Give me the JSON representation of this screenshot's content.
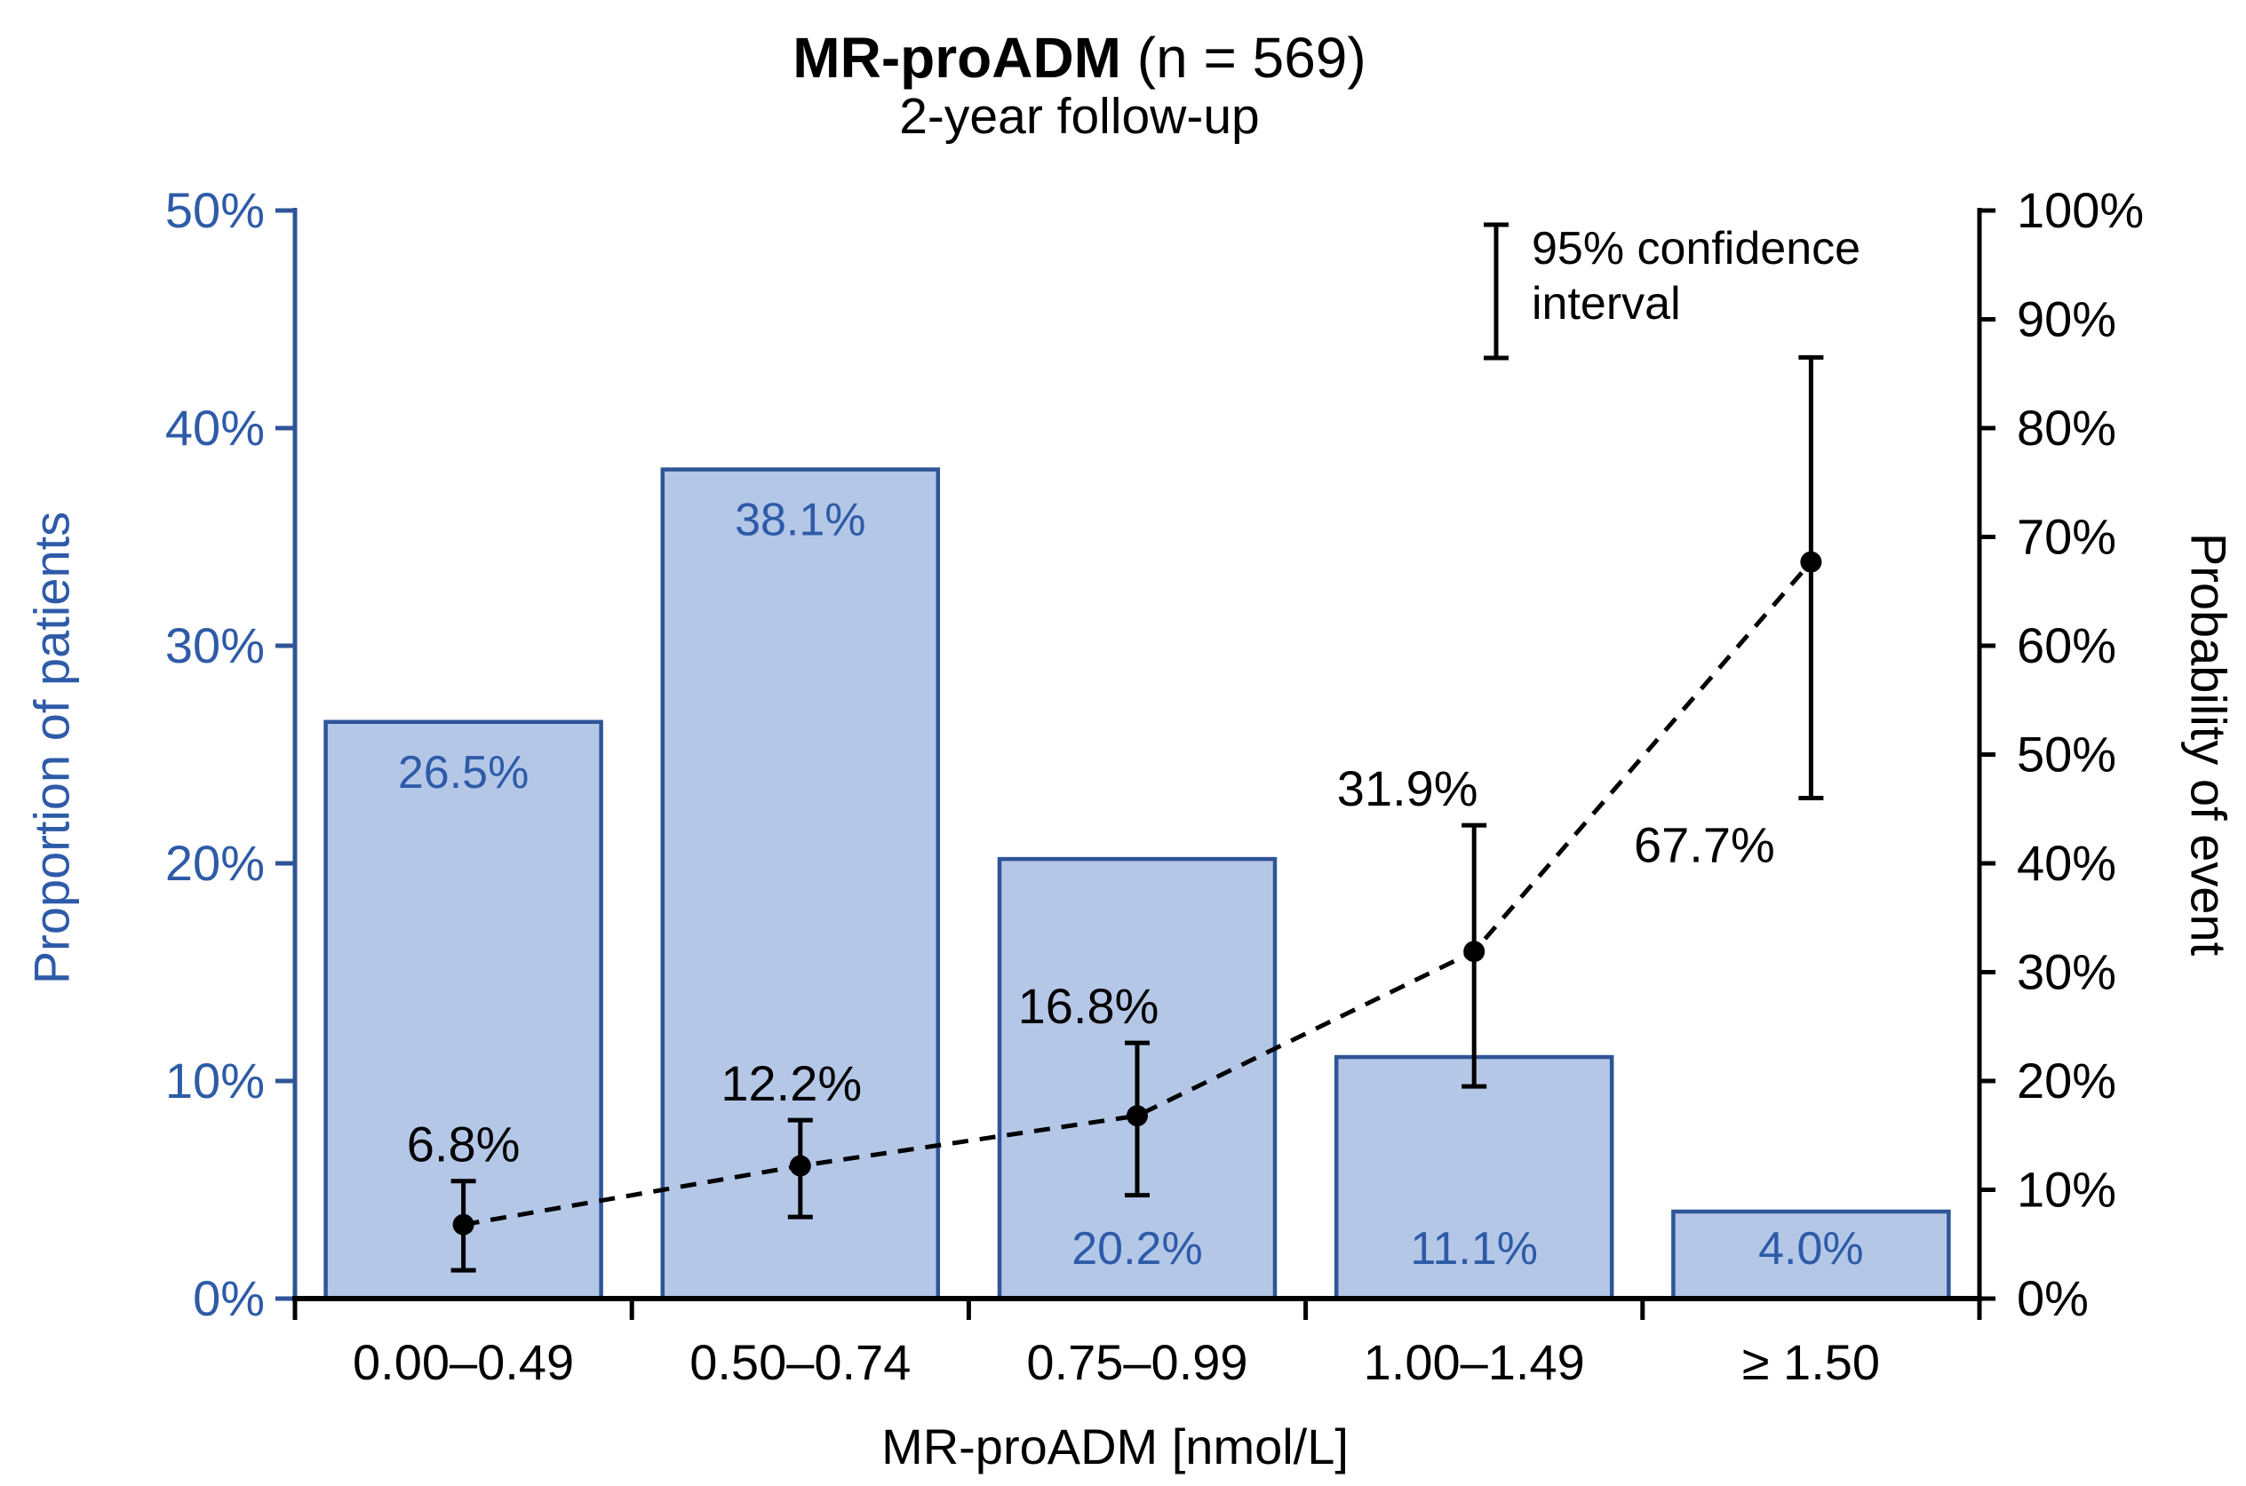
{
  "title": {
    "main": "MR-proADM",
    "suffix": " (n = 569)",
    "subtitle": "2-year follow-up"
  },
  "legend": {
    "marker": "error-bar-icon",
    "lines": [
      "95% confidence",
      "interval"
    ]
  },
  "colors": {
    "bar_fill": "#B4C7E7",
    "bar_border": "#2E5597",
    "blue_text": "#2E5BA8",
    "blue_axis": "#2E5597",
    "black": "#000000"
  },
  "chart_data": {
    "type": "bar",
    "subtype": "bar+line-dual-axis",
    "categories": [
      "0.00–0.49",
      "0.50–0.74",
      "0.75–0.99",
      "1.00–1.49",
      "≥ 1.50"
    ],
    "xlabel": "MR-proADM [nmol/L]",
    "grid": "off",
    "left_axis": {
      "label": "Proportion of patients",
      "min": 0,
      "max": 50,
      "ticks": [
        "0%",
        "10%",
        "20%",
        "30%",
        "40%",
        "50%"
      ]
    },
    "right_axis": {
      "label": "Probability of event",
      "min": 0,
      "max": 100,
      "ticks": [
        "0%",
        "10%",
        "20%",
        "30%",
        "40%",
        "50%",
        "60%",
        "70%",
        "80%",
        "90%",
        "100%"
      ]
    },
    "series": [
      {
        "name": "Proportion of patients",
        "type": "bar",
        "axis": "left",
        "values": [
          26.5,
          38.1,
          20.2,
          11.1,
          4.0
        ],
        "labels": [
          "26.5%",
          "38.1%",
          "20.2%",
          "11.1%",
          "4.0%"
        ],
        "label_position": [
          "top",
          "top",
          "bottom",
          "bottom",
          "bottom"
        ]
      },
      {
        "name": "Probability of event",
        "type": "line",
        "style": "dashed",
        "axis": "right",
        "values": [
          6.8,
          12.2,
          16.8,
          31.9,
          67.7
        ],
        "labels": [
          "6.8%",
          "12.2%",
          "16.8%",
          "31.9%",
          "67.7%"
        ],
        "ci_low": [
          2.6,
          7.5,
          9.5,
          19.5,
          46.0
        ],
        "ci_high": [
          10.8,
          16.4,
          23.5,
          43.5,
          86.5
        ],
        "label_placement": [
          "above",
          "above",
          "above",
          "above",
          "below"
        ]
      }
    ]
  }
}
